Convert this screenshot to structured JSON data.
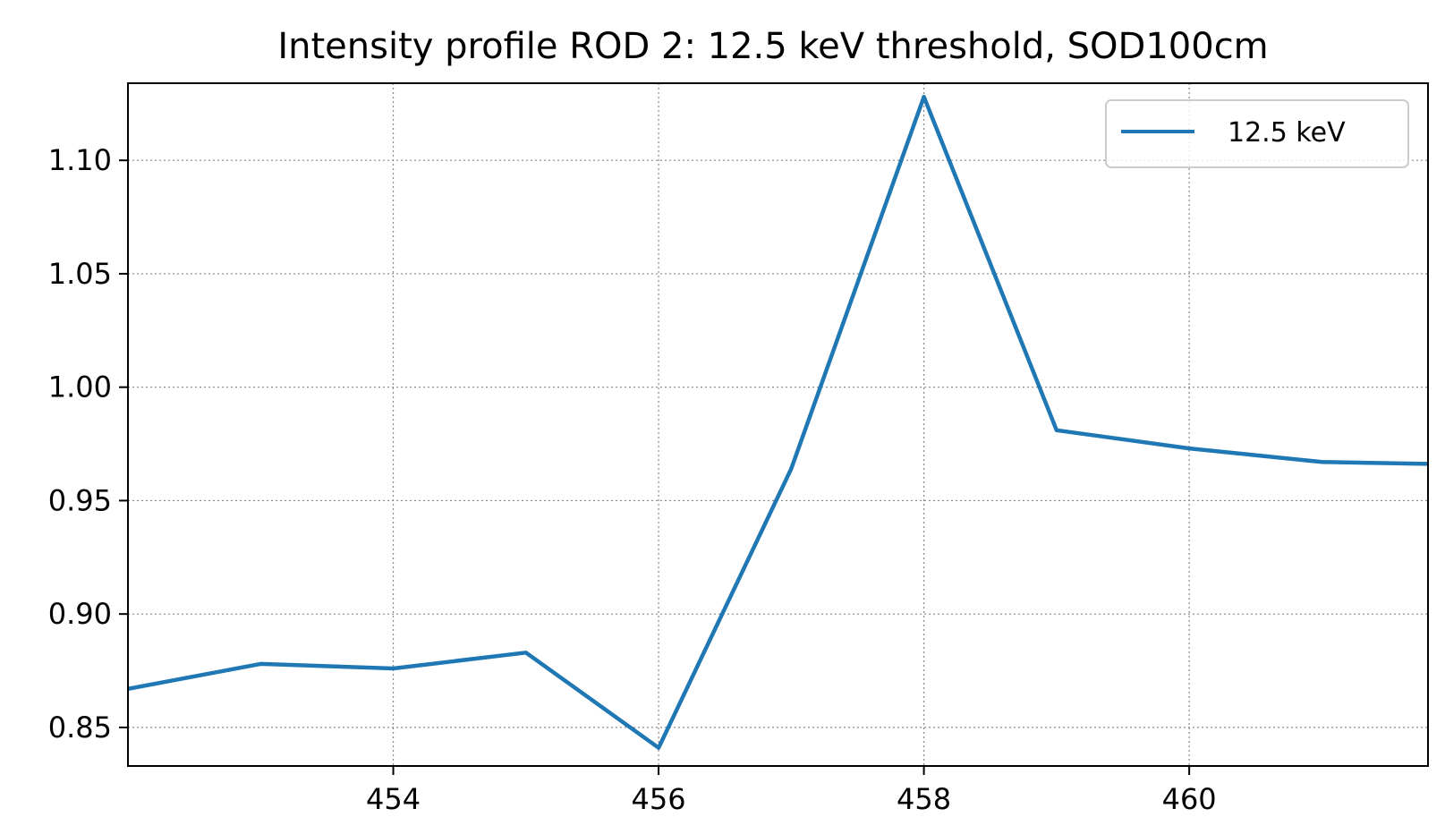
{
  "chart_data": {
    "type": "line",
    "title": "Intensity profile ROD 2: 12.5 keV threshold, SOD100cm",
    "xlabel": "",
    "ylabel": "",
    "xlim": [
      452.0,
      461.8
    ],
    "ylim": [
      0.833,
      1.134
    ],
    "xticks": [
      454,
      456,
      458,
      460
    ],
    "xtick_labels": [
      "454",
      "456",
      "458",
      "460"
    ],
    "yticks": [
      0.85,
      0.9,
      0.95,
      1.0,
      1.05,
      1.1
    ],
    "ytick_labels": [
      "0.85",
      "0.90",
      "0.95",
      "1.00",
      "1.05",
      "1.10"
    ],
    "grid": true,
    "legend_position": "top-right",
    "series": [
      {
        "name": "12.5 keV",
        "color": "#1f77b4",
        "x": [
          452,
          453,
          454,
          455,
          456,
          457,
          458,
          459,
          460,
          461,
          462
        ],
        "y": [
          0.867,
          0.878,
          0.876,
          0.883,
          0.841,
          0.964,
          1.128,
          0.981,
          0.973,
          0.967,
          0.966
        ]
      }
    ]
  }
}
